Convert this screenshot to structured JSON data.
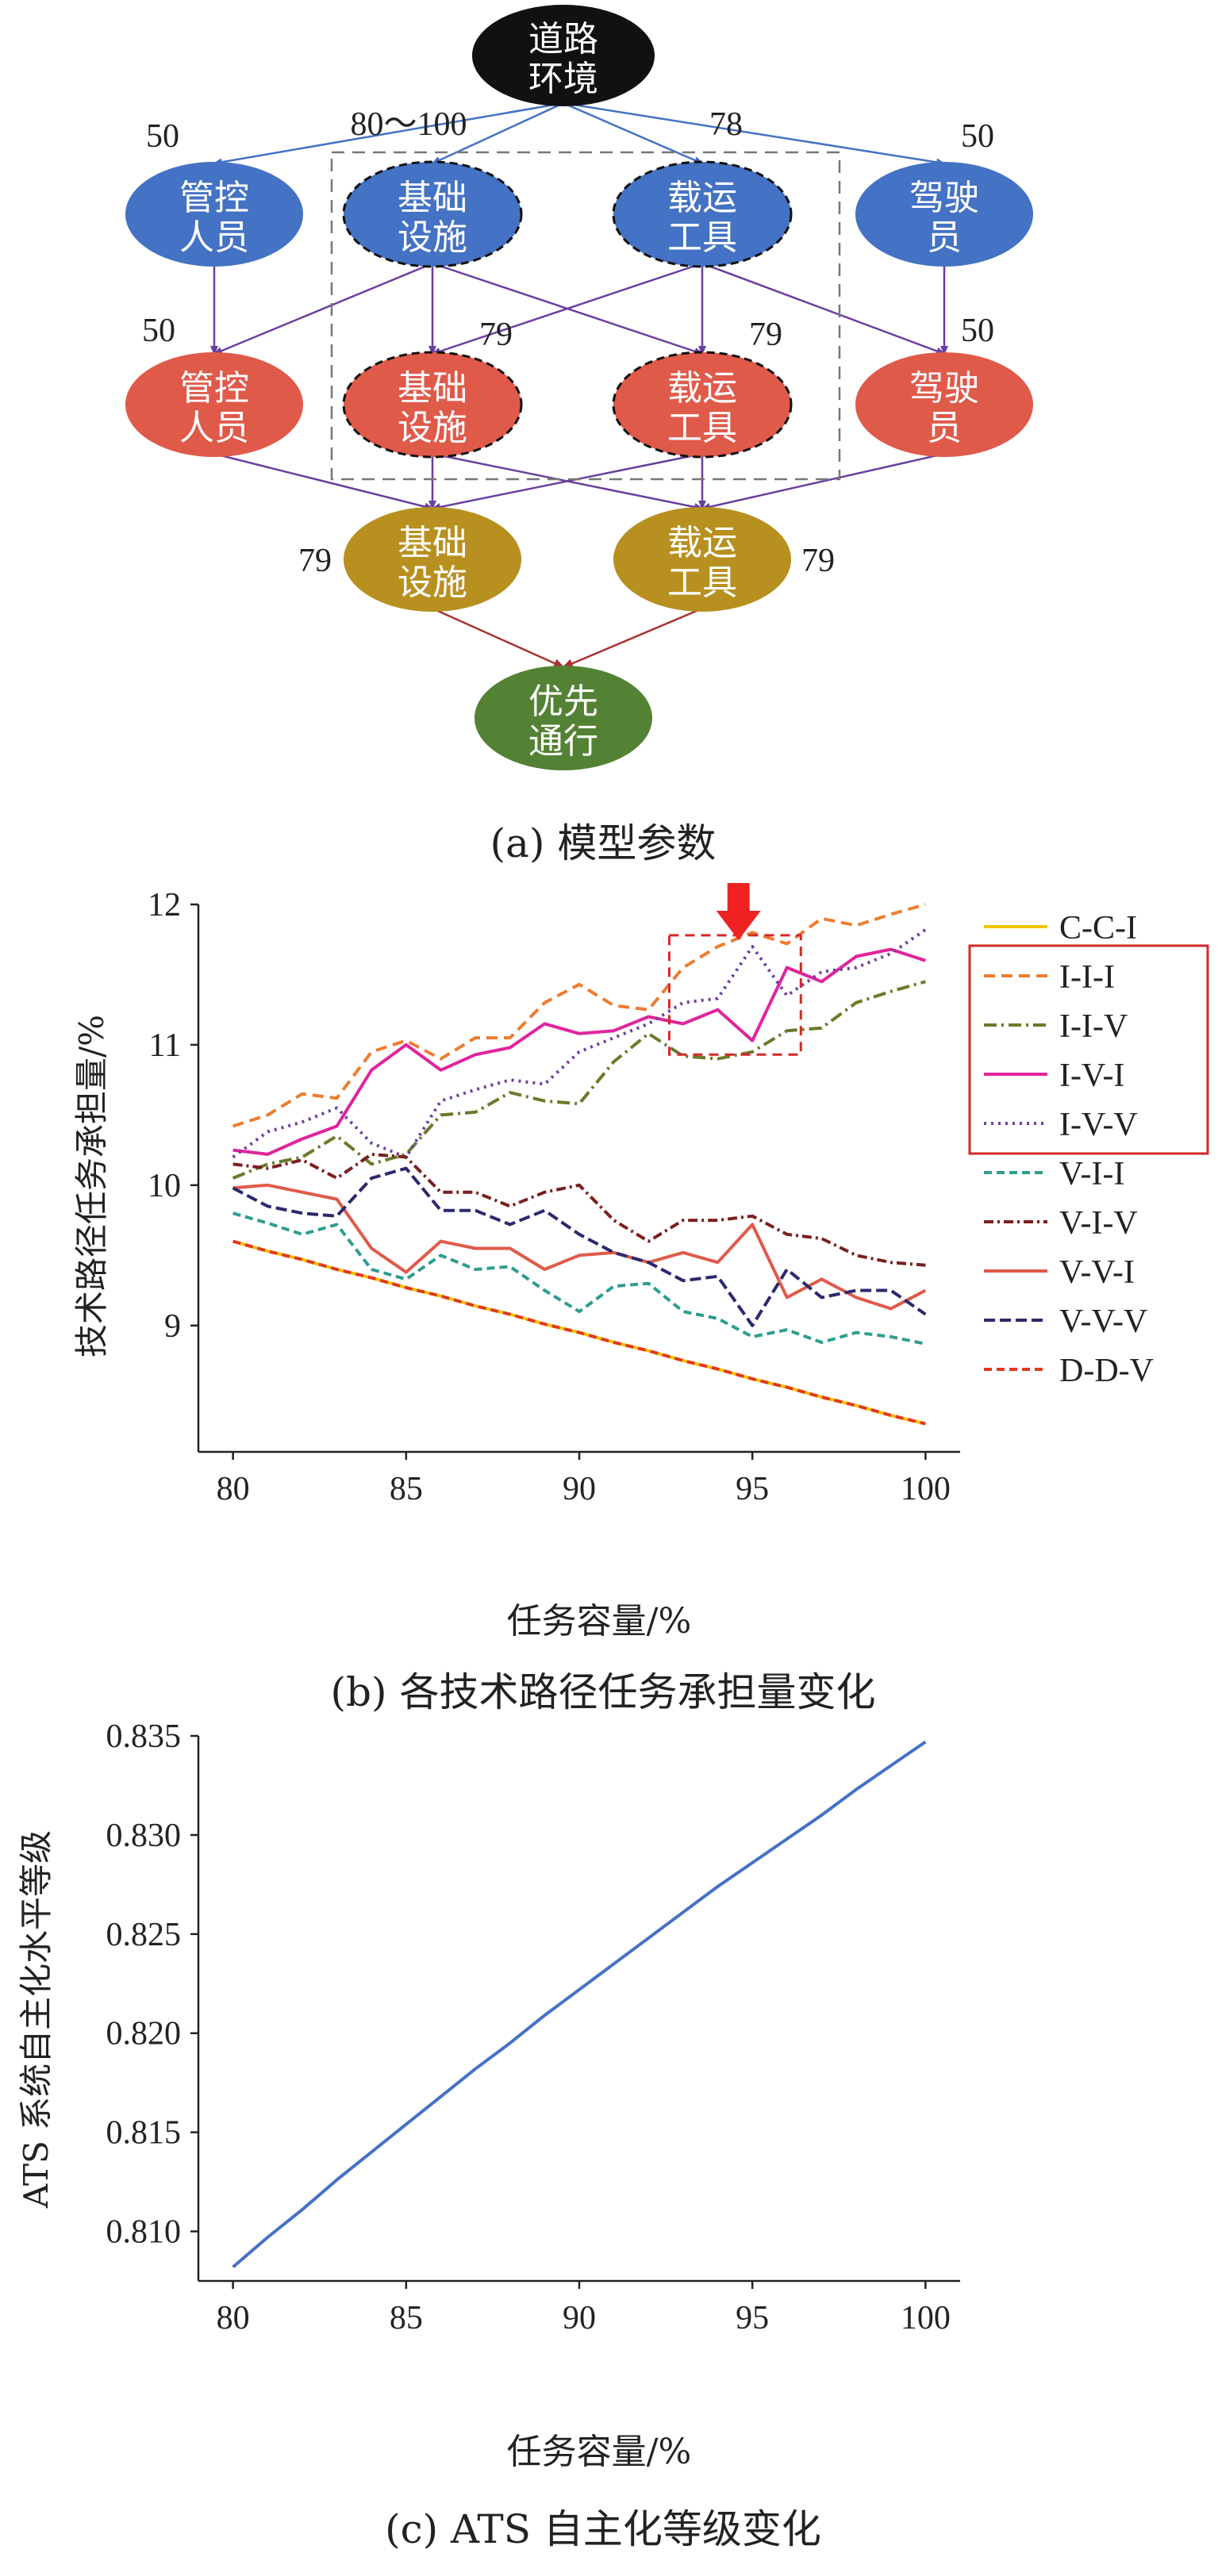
{
  "diagram": {
    "caption": "(a) 模型参数",
    "nodes": {
      "road_env": "道路环境",
      "l1_mgmt": "管控人员",
      "l1_infra": "基础设施",
      "l1_vehicle": "载运工具",
      "l1_driver": "驾驶员",
      "l2_mgmt": "管控人员",
      "l2_infra": "基础设施",
      "l2_vehicle": "载运工具",
      "l2_driver": "驾驶员",
      "l3_infra": "基础设施",
      "l3_vehicle": "载运工具",
      "goal": "优先通行"
    },
    "params": {
      "l1_mgmt": "50",
      "l1_infra": "80～100",
      "l1_vehicle": "78",
      "l1_driver": "50",
      "l2_mgmt": "50",
      "l2_infra": "79",
      "l2_vehicle": "79",
      "l2_driver": "50",
      "l3_infra": "79",
      "l3_vehicle": "79"
    },
    "colors": {
      "black": "#111111",
      "blue": "#4472c4",
      "red": "#e05a4a",
      "gold": "#b8901f",
      "green": "#548235",
      "param": "#d62828",
      "edge_blue": "#4472c4",
      "edge_purple": "#6b3fa0",
      "edge_red": "#a83232"
    }
  },
  "chart_data": [
    {
      "type": "line",
      "caption": "(b) 各技术路径任务承担量变化",
      "xlabel": "任务容量/%",
      "ylabel": "技术路径任务承担量/%",
      "xlim": [
        79,
        101
      ],
      "ylim": [
        8.1,
        12
      ],
      "xticks": [
        80,
        85,
        90,
        95,
        100
      ],
      "yticks": [
        9,
        10,
        11,
        12
      ],
      "x": [
        80,
        81,
        82,
        83,
        84,
        85,
        86,
        87,
        88,
        89,
        90,
        91,
        92,
        93,
        94,
        95,
        96,
        97,
        98,
        99,
        100
      ],
      "series": [
        {
          "name": "C-C-I",
          "color": "#f2c200",
          "dash": "",
          "values": [
            9.6,
            9.53,
            9.47,
            9.4,
            9.34,
            9.27,
            9.21,
            9.14,
            9.08,
            9.01,
            8.95,
            8.88,
            8.82,
            8.75,
            8.69,
            8.62,
            8.56,
            8.49,
            8.43,
            8.36,
            8.3
          ]
        },
        {
          "name": "I-I-I",
          "color": "#ed7d31",
          "dash": "14 8",
          "values": [
            10.42,
            10.5,
            10.65,
            10.62,
            10.95,
            11.03,
            10.9,
            11.05,
            11.05,
            11.3,
            11.43,
            11.28,
            11.25,
            11.55,
            11.7,
            11.8,
            11.72,
            11.9,
            11.85,
            11.93,
            12.0
          ]
        },
        {
          "name": "I-I-V",
          "color": "#6b7b2a",
          "dash": "16 6 3 6",
          "values": [
            10.05,
            10.15,
            10.2,
            10.35,
            10.15,
            10.22,
            10.5,
            10.52,
            10.66,
            10.6,
            10.58,
            10.88,
            11.08,
            10.92,
            10.9,
            10.95,
            11.1,
            11.12,
            11.3,
            11.38,
            11.45
          ]
        },
        {
          "name": "I-V-I",
          "color": "#e0249c",
          "dash": "",
          "values": [
            10.25,
            10.22,
            10.33,
            10.42,
            10.82,
            11.0,
            10.82,
            10.93,
            10.98,
            11.15,
            11.08,
            11.1,
            11.2,
            11.15,
            11.25,
            11.03,
            11.55,
            11.45,
            11.63,
            11.68,
            11.6
          ]
        },
        {
          "name": "I-V-V",
          "color": "#7040a0",
          "dash": "3 6",
          "values": [
            10.2,
            10.38,
            10.45,
            10.55,
            10.3,
            10.2,
            10.6,
            10.68,
            10.75,
            10.72,
            10.95,
            11.05,
            11.15,
            11.3,
            11.33,
            11.7,
            11.35,
            11.52,
            11.55,
            11.65,
            11.82
          ]
        },
        {
          "name": "V-I-I",
          "color": "#2e9e8e",
          "dash": "10 6",
          "values": [
            9.8,
            9.73,
            9.65,
            9.72,
            9.4,
            9.33,
            9.5,
            9.4,
            9.42,
            9.25,
            9.1,
            9.28,
            9.3,
            9.1,
            9.05,
            8.92,
            8.97,
            8.88,
            8.95,
            8.92,
            8.87
          ]
        },
        {
          "name": "V-I-V",
          "color": "#7a1f1f",
          "dash": "12 5 3 5",
          "values": [
            10.15,
            10.12,
            10.18,
            10.05,
            10.22,
            10.2,
            9.95,
            9.95,
            9.85,
            9.95,
            10.0,
            9.75,
            9.6,
            9.75,
            9.75,
            9.78,
            9.65,
            9.62,
            9.5,
            9.45,
            9.43
          ]
        },
        {
          "name": "V-V-I",
          "color": "#e05a4a",
          "dash": "",
          "values": [
            9.98,
            10.0,
            9.95,
            9.9,
            9.55,
            9.38,
            9.6,
            9.55,
            9.55,
            9.4,
            9.5,
            9.52,
            9.45,
            9.52,
            9.45,
            9.72,
            9.2,
            9.33,
            9.2,
            9.12,
            9.25
          ]
        },
        {
          "name": "V-V-V",
          "color": "#2b2a6e",
          "dash": "14 6",
          "values": [
            9.98,
            9.85,
            9.8,
            9.78,
            10.05,
            10.12,
            9.82,
            9.82,
            9.72,
            9.82,
            9.65,
            9.52,
            9.45,
            9.32,
            9.35,
            9.0,
            9.4,
            9.2,
            9.25,
            9.25,
            9.08
          ]
        },
        {
          "name": "D-D-V",
          "color": "#e03a1a",
          "dash": "10 6",
          "values": [
            9.6,
            9.53,
            9.47,
            9.4,
            9.34,
            9.27,
            9.21,
            9.14,
            9.08,
            9.01,
            8.95,
            8.88,
            8.82,
            8.75,
            8.69,
            8.62,
            8.56,
            8.49,
            8.43,
            8.36,
            8.3
          ]
        }
      ],
      "highlight": {
        "x_range": [
          92.6,
          96.4
        ],
        "y_range": [
          10.93,
          11.78
        ],
        "arrow_x": 94.6
      },
      "legend_box": [
        "I-I-I",
        "I-I-V",
        "I-V-I",
        "I-V-V"
      ],
      "legend": "right"
    },
    {
      "type": "line",
      "caption": "(c) ATS 自主化等级变化",
      "xlabel": "任务容量/%",
      "ylabel": "ATS 系统自主化水平等级",
      "xlim": [
        79,
        101
      ],
      "ylim": [
        0.8075,
        0.835
      ],
      "xticks": [
        80,
        85,
        90,
        95,
        100
      ],
      "yticks": [
        "0.810",
        "0.815",
        "0.820",
        "0.825",
        "0.830",
        "0.835"
      ],
      "x": [
        80,
        81,
        82,
        83,
        84,
        85,
        86,
        87,
        88,
        89,
        90,
        91,
        92,
        93,
        94,
        95,
        96,
        97,
        98,
        99,
        100
      ],
      "series": [
        {
          "name": "ATS",
          "color": "#4472c4",
          "values": [
            0.8082,
            0.8097,
            0.8111,
            0.8126,
            0.814,
            0.8154,
            0.8168,
            0.8182,
            0.8195,
            0.8209,
            0.8222,
            0.8235,
            0.8248,
            0.8261,
            0.8274,
            0.8286,
            0.8298,
            0.831,
            0.8323,
            0.8335,
            0.8347
          ]
        }
      ]
    }
  ]
}
